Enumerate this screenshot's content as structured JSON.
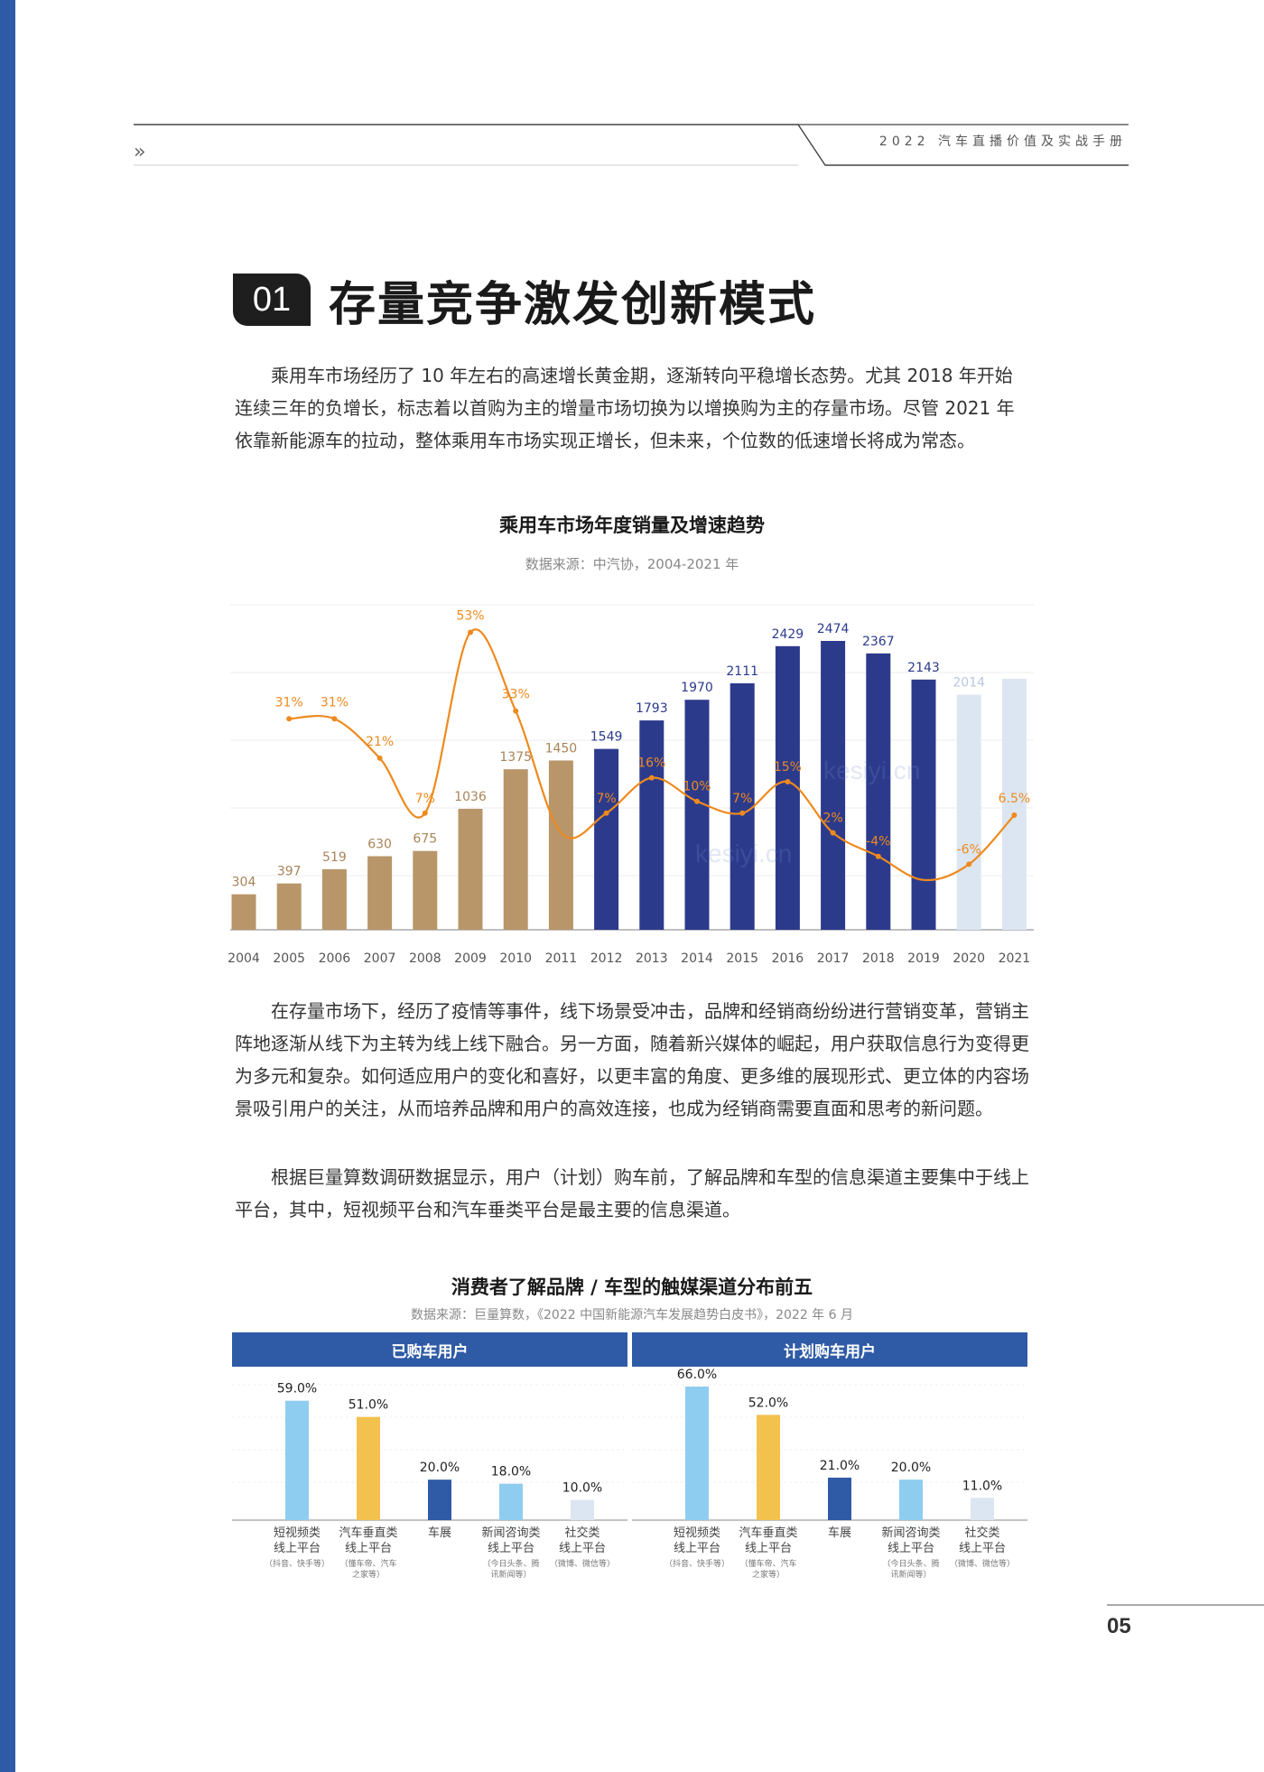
{
  "header": {
    "doc_title": "2022 汽车直播价值及实战手册",
    "chevron": "››"
  },
  "section": {
    "number": "01",
    "title": "存量竞争激发创新模式"
  },
  "paragraphs": [
    "乘用车市场经历了 10 年左右的高速增长黄金期，逐渐转向平稳增长态势。尤其 2018 年开始连续三年的负增长，标志着以首购为主的增量市场切换为以增换购为主的存量市场。尽管 2021 年依靠新能源车的拉动，整体乘用车市场实现正增长，但未来，个位数的低速增长将成为常态。",
    "在存量市场下，经历了疫情等事件，线下场景受冲击，品牌和经销商纷纷进行营销变革，营销主阵地逐渐从线下为主转为线上线下融合。另一方面，随着新兴媒体的崛起，用户获取信息行为变得更为多元和复杂。如何适应用户的变化和喜好，以更丰富的角度、更多维的展现形式、更立体的内容场景吸引用户的关注，从而培养品牌和用户的高效连接，也成为经销商需要直面和思考的新问题。",
    "根据巨量算数调研数据显示，用户（计划）购车前，了解品牌和车型的信息渠道主要集中于线上平台，其中，短视频平台和汽车垂类平台是最主要的信息渠道。"
  ],
  "chart_data": [
    {
      "type": "bar",
      "title": "乘用车市场年度销量及增速趋势",
      "subtitle": "数据来源：中汽协，2004-2021 年",
      "categories": [
        "2004",
        "2005",
        "2006",
        "2007",
        "2008",
        "2009",
        "2010",
        "2011",
        "2012",
        "2013",
        "2014",
        "2015",
        "2016",
        "2017",
        "2018",
        "2019",
        "2020",
        "2021"
      ],
      "series": [
        {
          "values": [
            304,
            397,
            519,
            630,
            675,
            1036,
            1375,
            1450,
            1549,
            1793,
            1970,
            2111,
            2429,
            2474,
            2367,
            2143,
            2014,
            null
          ]
        },
        {
          "type": "line",
          "values": [
            null,
            31,
            31,
            21,
            7,
            53,
            33,
            null,
            7,
            16,
            10,
            7,
            15,
            2,
            -4,
            null,
            -6,
            6.5
          ]
        }
      ],
      "bar_labels": [
        "304",
        "397",
        "519",
        "630",
        "675",
        "1036",
        "1375",
        "1450",
        "1549",
        "1793",
        "1970",
        "2111",
        "2429",
        "2474",
        "2367",
        "2143",
        "2014",
        ""
      ],
      "line_labels": [
        "",
        "31%",
        "31%",
        "21%",
        "7%",
        "53%",
        "33%",
        "",
        "7%",
        "16%",
        "10%",
        "7%",
        "15%",
        "2%",
        "-4%",
        "",
        "-6%",
        "6.5%"
      ],
      "colors": {
        "early": "#b8966a",
        "mid": "#2c3a8c",
        "late": "#dce6f2",
        "line": "#ee8a1e"
      }
    },
    {
      "type": "bar",
      "title": "消费者了解品牌 / 车型的触媒渠道分布前五",
      "subtitle": "数据来源：巨量算数，《2022 中国新能源汽车发展趋势白皮书》，2022 年 6 月",
      "panels": [
        {
          "name": "已购车用户",
          "values": [
            59.0,
            51.0,
            20.0,
            18.0,
            10.0
          ],
          "labels": [
            "59.0%",
            "51.0%",
            "20.0%",
            "18.0%",
            "10.0%"
          ]
        },
        {
          "name": "计划购车用户",
          "values": [
            66.0,
            52.0,
            21.0,
            20.0,
            11.0
          ],
          "labels": [
            "66.0%",
            "52.0%",
            "21.0%",
            "20.0%",
            "11.0%"
          ]
        }
      ],
      "categories": [
        {
          "line1": "短视频类",
          "line2": "线上平台",
          "note1": "（抖音、快手等）",
          "note2": ""
        },
        {
          "line1": "汽车垂直类",
          "line2": "线上平台",
          "note1": "（懂车帝、汽车",
          "note2": "之家等）"
        },
        {
          "line1": "车展",
          "line2": "",
          "note1": "",
          "note2": ""
        },
        {
          "line1": "新闻咨询类",
          "line2": "线上平台",
          "note1": "（今日头条、腾",
          "note2": "讯新闻等）"
        },
        {
          "line1": "社交类",
          "line2": "线上平台",
          "note1": "（微博、微信等）",
          "note2": ""
        }
      ],
      "colors": [
        "#8fcdf0",
        "#f2c14e",
        "#2f5ba6",
        "#8fcdf0",
        "#dce6f2"
      ]
    }
  ],
  "page_number": "05",
  "watermark": "kesiyi.cn"
}
